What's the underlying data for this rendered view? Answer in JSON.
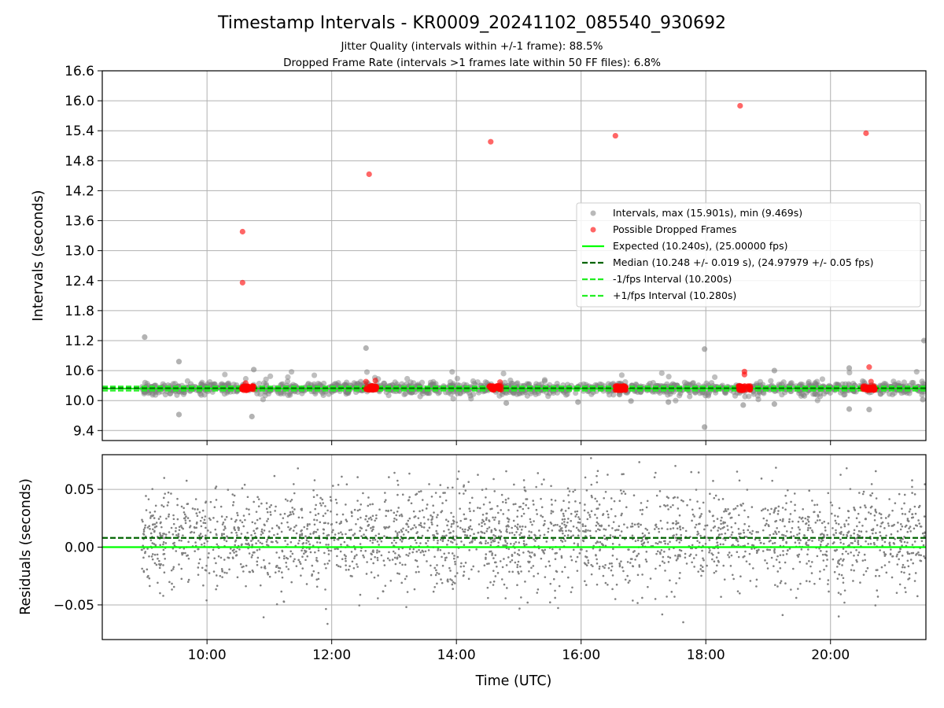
{
  "chart_data": {
    "type": "scatter",
    "title": "Timestamp Intervals - KR0009_20241102_085540_930692",
    "subtitle_lines": [
      "Jitter Quality (intervals within +/-1 frame): 88.5%",
      "Dropped Frame Rate (intervals >1 frames late within 50 FF files): 6.8%"
    ],
    "xlabel": "Time (UTC)",
    "x_ticks": [
      "10:00",
      "12:00",
      "14:00",
      "16:00",
      "18:00",
      "20:00"
    ],
    "x_tick_hours": [
      10,
      12,
      14,
      16,
      18,
      20
    ],
    "xlim_hours": [
      8.32,
      21.53
    ],
    "grid": true,
    "legend_position": "center-right",
    "top_panel": {
      "ylabel": "Intervals (seconds)",
      "ylim": [
        9.2,
        16.6
      ],
      "y_ticks": [
        "9.4",
        "10.0",
        "10.6",
        "11.2",
        "11.8",
        "12.4",
        "13.0",
        "13.6",
        "14.2",
        "14.8",
        "15.4",
        "16.0",
        "16.6"
      ],
      "y_tick_values": [
        9.4,
        10.0,
        10.6,
        11.2,
        11.8,
        12.4,
        13.0,
        13.6,
        14.2,
        14.8,
        15.4,
        16.0,
        16.6
      ],
      "series": [
        {
          "name": "Intervals, max (15.901s), min (9.469s)",
          "kind": "scatter",
          "color": "#808080",
          "x_range_hours": [
            8.95,
            21.52
          ],
          "y_center": 10.24,
          "y_spread": 0.06,
          "outliers": [
            [
              9.0,
              11.27
            ],
            [
              9.55,
              10.78
            ],
            [
              9.55,
              9.72
            ],
            [
              10.72,
              9.68
            ],
            [
              10.75,
              10.62
            ],
            [
              12.55,
              11.05
            ],
            [
              14.8,
              9.95
            ],
            [
              15.95,
              9.97
            ],
            [
              16.8,
              9.99
            ],
            [
              17.4,
              9.97
            ],
            [
              17.98,
              11.03
            ],
            [
              17.98,
              9.47
            ],
            [
              18.6,
              9.91
            ],
            [
              19.1,
              10.6
            ],
            [
              19.1,
              9.93
            ],
            [
              20.3,
              10.65
            ],
            [
              20.3,
              9.83
            ],
            [
              20.62,
              9.82
            ],
            [
              21.5,
              11.2
            ],
            [
              21.48,
              10.02
            ]
          ]
        },
        {
          "name": "Possible Dropped Frames",
          "kind": "scatter",
          "color": "#ff0000",
          "points": [
            [
              10.57,
              13.38
            ],
            [
              10.57,
              12.36
            ],
            [
              12.6,
              14.53
            ],
            [
              14.55,
              15.18
            ],
            [
              16.55,
              15.3
            ],
            [
              18.55,
              15.9
            ],
            [
              20.57,
              15.35
            ],
            [
              18.62,
              10.58
            ],
            [
              18.62,
              10.52
            ],
            [
              20.62,
              10.67
            ],
            [
              12.7,
              10.4
            ],
            [
              12.55,
              10.38
            ],
            [
              10.62,
              10.35
            ],
            [
              14.7,
              10.37
            ],
            [
              20.65,
              10.38
            ]
          ],
          "clusters": [
            [
              10.55,
              10.75
            ],
            [
              12.55,
              12.72
            ],
            [
              14.52,
              14.72
            ],
            [
              16.55,
              16.72
            ],
            [
              18.52,
              18.72
            ],
            [
              20.52,
              20.72
            ]
          ],
          "cluster_y": 10.25
        },
        {
          "name": "Expected (10.240s), (25.00000 fps)",
          "kind": "hline",
          "y": 10.24,
          "color": "#00ff00",
          "style": "solid"
        },
        {
          "name": "Median (10.248 +/- 0.019 s), (24.97979 +/- 0.05 fps)",
          "kind": "hline",
          "y": 10.248,
          "color": "#006400",
          "style": "dashed"
        },
        {
          "name": "-1/fps Interval (10.200s)",
          "kind": "hline",
          "y": 10.2,
          "color": "#22ee22",
          "style": "dashed"
        },
        {
          "name": "+1/fps Interval (10.280s)",
          "kind": "hline",
          "y": 10.28,
          "color": "#22ee22",
          "style": "dashed"
        }
      ]
    },
    "bottom_panel": {
      "ylabel": "Residuals (seconds)",
      "ylim": [
        -0.08,
        0.08
      ],
      "y_ticks": [
        "−0.05",
        "0.00",
        "0.05"
      ],
      "y_tick_values": [
        -0.05,
        0.0,
        0.05
      ],
      "series": [
        {
          "kind": "scatter",
          "color": "#808080",
          "x_range_hours": [
            8.95,
            21.52
          ],
          "spread": 0.022,
          "point_count": 2600
        },
        {
          "kind": "hline",
          "y": 0.0,
          "color": "#00ff00",
          "style": "solid"
        },
        {
          "kind": "hline",
          "y": 0.008,
          "color": "#006400",
          "style": "dashed"
        }
      ]
    }
  }
}
